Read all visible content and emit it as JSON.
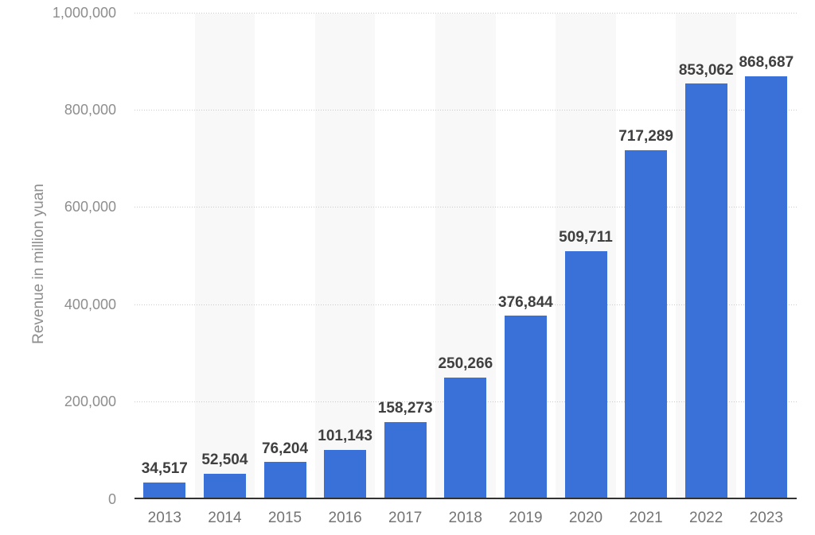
{
  "chart_data": {
    "type": "bar",
    "title": "",
    "xlabel": "",
    "ylabel": "Revenue in million yuan",
    "categories": [
      "2013",
      "2014",
      "2015",
      "2016",
      "2017",
      "2018",
      "2019",
      "2020",
      "2021",
      "2022",
      "2023"
    ],
    "values": [
      34517,
      52504,
      76204,
      101143,
      158273,
      250266,
      376844,
      509711,
      717289,
      853062,
      868687
    ],
    "value_labels": [
      "34,517",
      "52,504",
      "76,204",
      "101,143",
      "158,273",
      "250,266",
      "376,844",
      "509,711",
      "717,289",
      "853,062",
      "868,687"
    ],
    "ylim": [
      0,
      1000000
    ],
    "y_ticks": [
      {
        "value": 0,
        "label": "0"
      },
      {
        "value": 200000,
        "label": "200,000"
      },
      {
        "value": 400000,
        "label": "400,000"
      },
      {
        "value": 600000,
        "label": "600,000"
      },
      {
        "value": 800000,
        "label": "800,000"
      },
      {
        "value": 1000000,
        "label": "1,000,000"
      }
    ],
    "grid": "horizontal dotted gridlines at each y tick",
    "legend": "none",
    "background_stripes": "light column behind every second category (2014, 2016, 2018, 2020, 2022)",
    "colors": {
      "bar": "#3a71d8",
      "stripe": "#f8f8f8",
      "gridline": "#c9c9c9",
      "axis_line": "#323232",
      "value_label": "#3f3f3f",
      "x_tick_label": "#747474",
      "y_tick_label": "#8e8e8e",
      "axis_title": "#8e8e8e",
      "background": "#ffffff"
    }
  }
}
